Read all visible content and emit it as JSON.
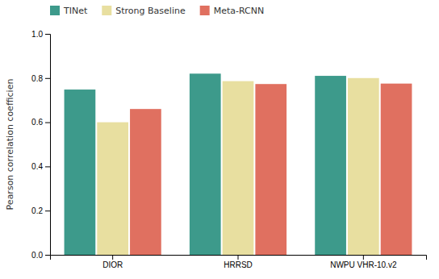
{
  "chart_data": {
    "type": "bar",
    "categories": [
      "DIOR",
      "HRRSD",
      "NWPU VHR-10.v2"
    ],
    "series": [
      {
        "name": "TINet",
        "color": "#3d9a8b",
        "values": [
          0.748,
          0.82,
          0.81
        ]
      },
      {
        "name": "Strong Baseline",
        "color": "#e8dfa0",
        "values": [
          0.6,
          0.786,
          0.8
        ]
      },
      {
        "name": "Meta-RCNN",
        "color": "#e07060",
        "values": [
          0.66,
          0.773,
          0.775
        ]
      }
    ],
    "ylabel": "Pearson correlation coefficien",
    "ylim": [
      0.0,
      1.0
    ],
    "yticks": [
      {
        "value": 0.0,
        "label": "0.0"
      },
      0.2,
      0.4,
      0.6,
      0.8,
      {
        "value": 1.0,
        "label": "1.0"
      }
    ],
    "legend": "upper left",
    "grid": false
  }
}
